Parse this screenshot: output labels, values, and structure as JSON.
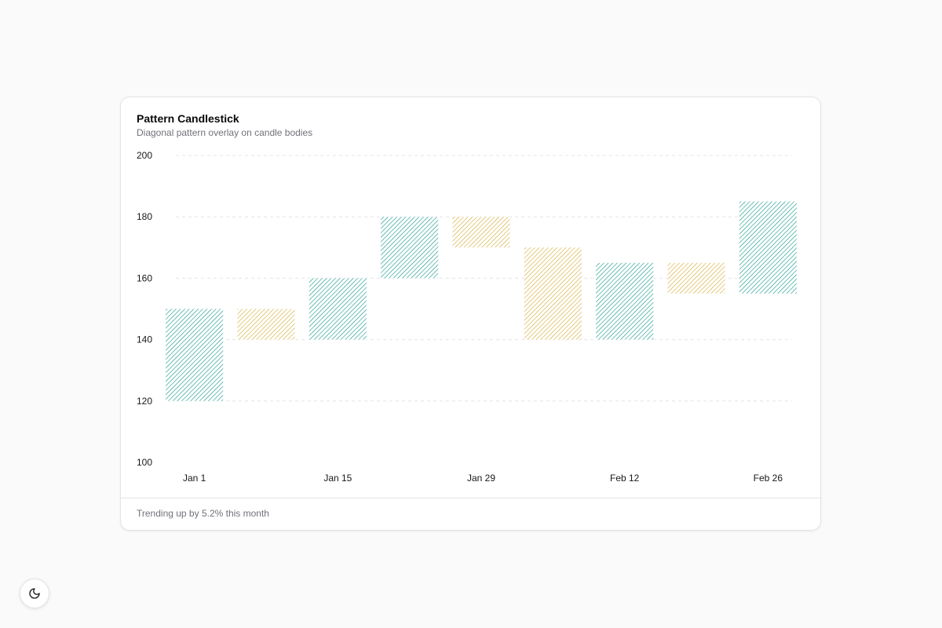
{
  "card": {
    "title": "Pattern Candlestick",
    "subtitle": "Diagonal pattern overlay on candle bodies",
    "footer": "Trending up by 5.2% this month"
  },
  "theme_toggle": {
    "icon": "moon-icon"
  },
  "chart_data": {
    "type": "candlestick",
    "title": "Pattern Candlestick",
    "subtitle": "Diagonal pattern overlay on candle bodies",
    "ylim": [
      100,
      200
    ],
    "y_ticks": [
      100,
      120,
      140,
      160,
      180,
      200
    ],
    "x_tick_labels": [
      "Jan 1",
      "Jan 15",
      "Jan 29",
      "Feb 12",
      "Feb 26"
    ],
    "grid": true,
    "colors": {
      "up": "#0d9488",
      "down": "#d4a82a",
      "grid": "#e4e4e7"
    },
    "candles": [
      {
        "open": 120,
        "close": 150
      },
      {
        "open": 150,
        "close": 140
      },
      {
        "open": 140,
        "close": 160
      },
      {
        "open": 160,
        "close": 180
      },
      {
        "open": 180,
        "close": 170
      },
      {
        "open": 170,
        "close": 140
      },
      {
        "open": 140,
        "close": 165
      },
      {
        "open": 165,
        "close": 155
      },
      {
        "open": 155,
        "close": 185
      }
    ]
  }
}
